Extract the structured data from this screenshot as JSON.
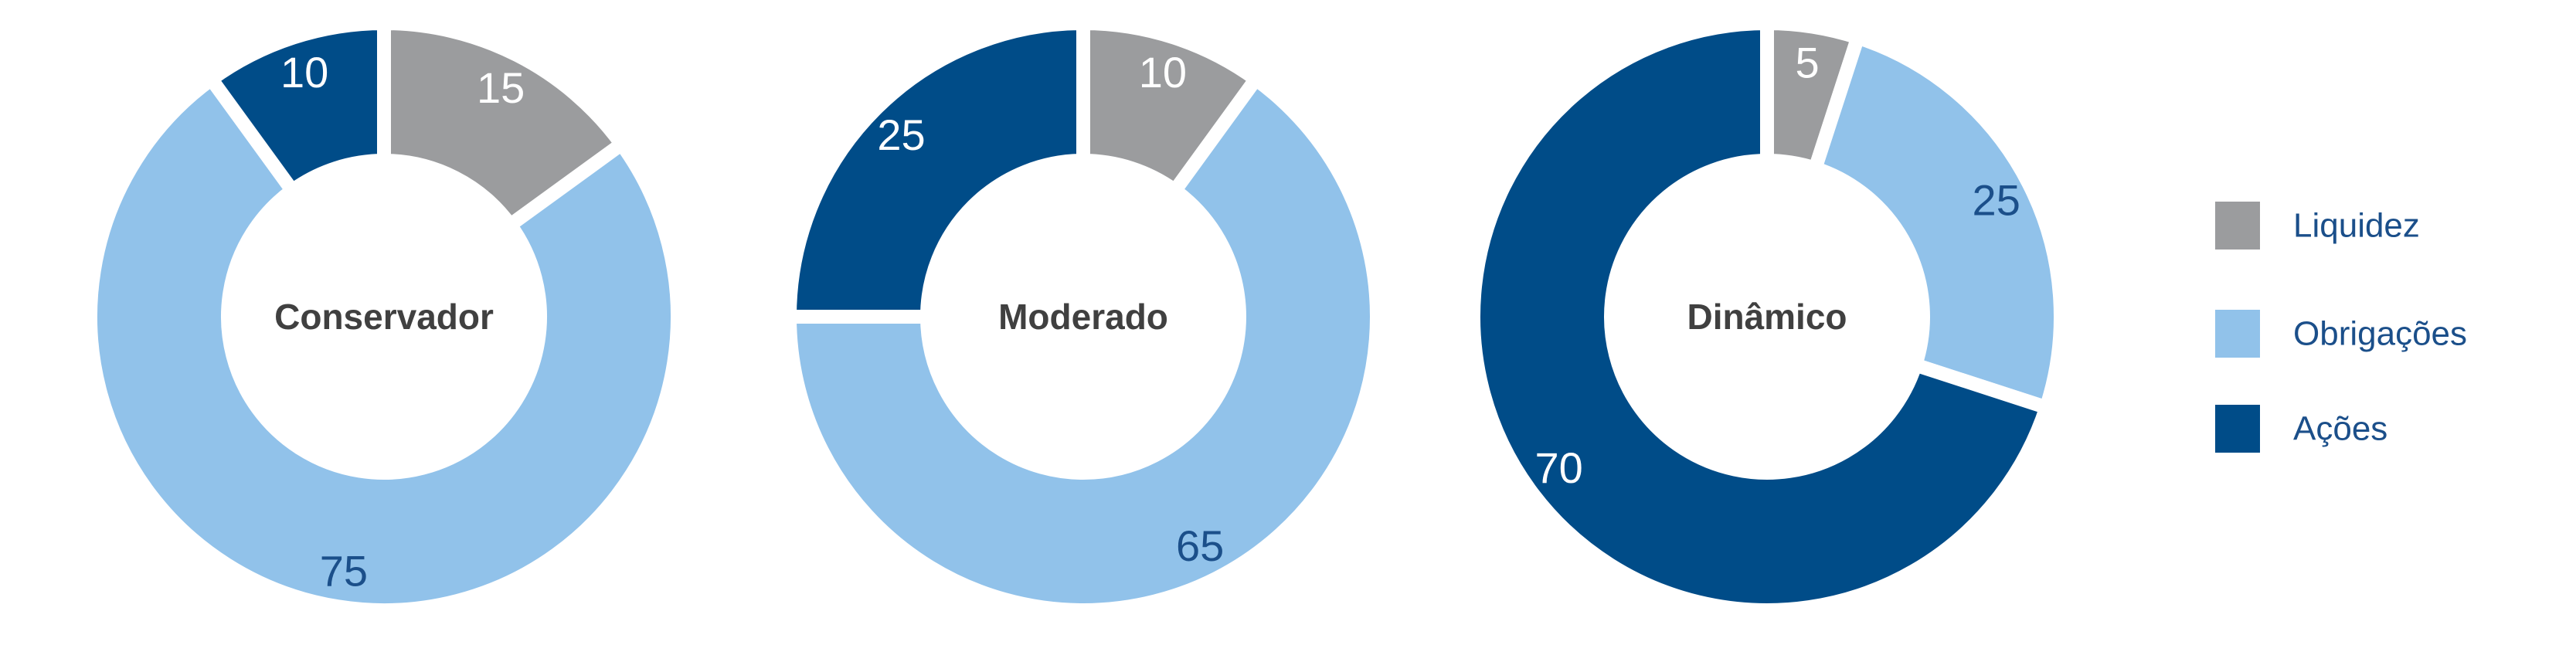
{
  "chart_data": [
    {
      "type": "pie",
      "title": "Conservador",
      "categories": [
        "Liquidez",
        "Obrigações",
        "Ações"
      ],
      "values": [
        15,
        75,
        10
      ]
    },
    {
      "type": "pie",
      "title": "Moderado",
      "categories": [
        "Liquidez",
        "Obrigações",
        "Ações"
      ],
      "values": [
        10,
        65,
        25
      ]
    },
    {
      "type": "pie",
      "title": "Dinâmico",
      "categories": [
        "Liquidez",
        "Obrigações",
        "Ações"
      ],
      "values": [
        5,
        25,
        70
      ]
    }
  ],
  "legend": {
    "placement": "right",
    "items": [
      {
        "label": "Liquidez",
        "color": "#9b9c9e"
      },
      {
        "label": "Obrigações",
        "color": "#91c2ea"
      },
      {
        "label": "Ações",
        "color": "#004c88"
      }
    ]
  },
  "label_colors": {
    "Liquidez": "#ffffff",
    "Obrigações": "#1b4f8a",
    "Ações": "#ffffff"
  }
}
